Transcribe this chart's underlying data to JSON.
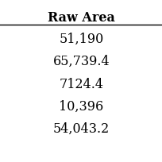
{
  "header": "Raw Area",
  "rows": [
    "51,190",
    "65,739.4",
    "7124.4",
    "10,396",
    "54,043.2"
  ],
  "header_fontsize": 11.5,
  "row_fontsize": 11.5,
  "background_color": "#ffffff",
  "text_color": "#000000",
  "header_font_weight": "bold",
  "fig_width": 2.05,
  "fig_height": 2.05,
  "dpi": 100
}
